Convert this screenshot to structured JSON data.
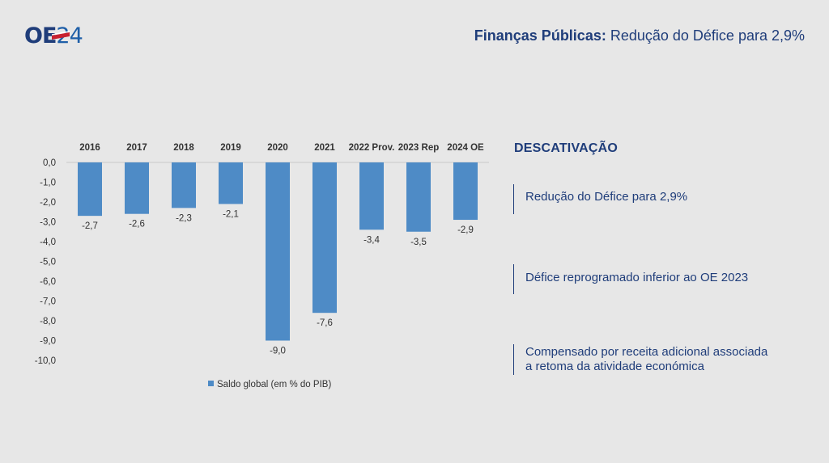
{
  "header": {
    "logo_text": "OE",
    "logo_number": "24",
    "title_strong": "Finanças Públicas:",
    "title_rest": " Redução do Défice para 2,9%"
  },
  "colors": {
    "bar": "#4e8bc6",
    "accent": "#1f3d7a"
  },
  "chart_data": {
    "type": "bar",
    "categories": [
      "2016",
      "2017",
      "2018",
      "2019",
      "2020",
      "2021",
      "2022 Prov.",
      "2023 Rep",
      "2024 OE"
    ],
    "series": [
      {
        "name": "Saldo global (em % do PIB)",
        "values": [
          -2.7,
          -2.6,
          -2.3,
          -2.1,
          -9.0,
          -7.6,
          -3.4,
          -3.5,
          -2.9
        ]
      }
    ],
    "data_labels": [
      "-2,7",
      "-2,6",
      "-2,3",
      "-2,1",
      "-9,0",
      "-7,6",
      "-3,4",
      "-3,5",
      "-2,9"
    ],
    "yticks": [
      "0,0",
      "-1,0",
      "-2,0",
      "-3,0",
      "-4,0",
      "-5,0",
      "-6,0",
      "-7,0",
      "-8,0",
      "-9,0",
      "-10,0"
    ],
    "ylim": [
      -10,
      0
    ],
    "legend": "Saldo global (em % do PIB)",
    "legend_position": "bottom",
    "xaxis_position": "top",
    "title": "",
    "xlabel": "",
    "ylabel": ""
  },
  "description": {
    "heading": "DESCATIVAÇÃO",
    "items": [
      {
        "lines": [
          "Redução do Défice para 2,9%"
        ]
      },
      {
        "lines": [
          "Défice reprogramado inferior ao OE 2023"
        ]
      },
      {
        "lines": [
          "Compensado por receita adicional associada",
          "a retoma da atividade económica"
        ]
      }
    ]
  }
}
